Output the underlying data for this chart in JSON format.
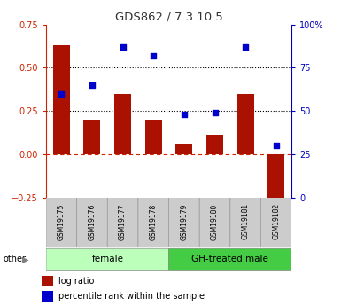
{
  "title": "GDS862 / 7.3.10.5",
  "samples": [
    "GSM19175",
    "GSM19176",
    "GSM19177",
    "GSM19178",
    "GSM19179",
    "GSM19180",
    "GSM19181",
    "GSM19182"
  ],
  "log_ratio": [
    0.63,
    0.2,
    0.35,
    0.2,
    0.06,
    0.11,
    0.35,
    -0.3
  ],
  "percentile_rank": [
    60,
    65,
    87,
    82,
    48,
    49,
    87,
    30
  ],
  "groups": [
    {
      "label": "female",
      "start": 0,
      "end": 4,
      "color": "#bbffbb"
    },
    {
      "label": "GH-treated male",
      "start": 4,
      "end": 8,
      "color": "#44cc44"
    }
  ],
  "bar_color": "#aa1100",
  "dot_color": "#0000cc",
  "left_ylim": [
    -0.25,
    0.75
  ],
  "right_ylim": [
    0,
    100
  ],
  "left_yticks": [
    -0.25,
    0,
    0.25,
    0.5,
    0.75
  ],
  "right_yticks": [
    0,
    25,
    50,
    75,
    100
  ],
  "hline_y": [
    0.25,
    0.5
  ],
  "left_ycolor": "#cc2200",
  "right_ycolor": "#0000bb",
  "legend_bar_label": "log ratio",
  "legend_dot_label": "percentile rank within the sample",
  "other_label": "other",
  "title_color": "#333333",
  "xticklabel_bg": "#cccccc",
  "xticklabel_border": "#999999"
}
